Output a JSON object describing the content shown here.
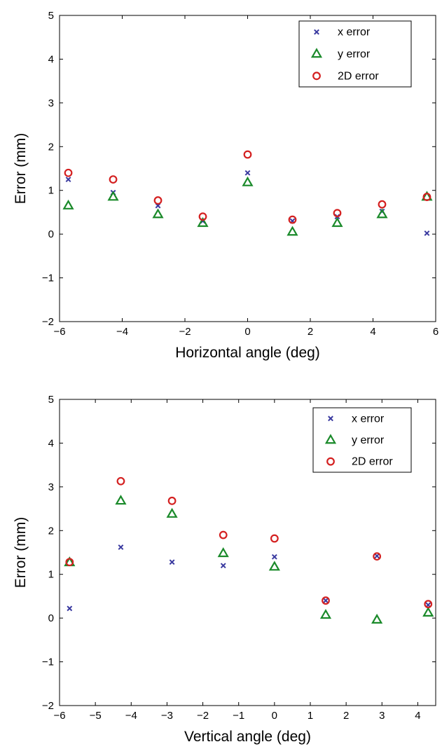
{
  "chart_data": [
    {
      "type": "scatter",
      "title": "",
      "xlabel": "Horizontal angle (deg)",
      "ylabel": "Error (mm)",
      "xlim": [
        -6,
        6
      ],
      "ylim": [
        -2,
        5
      ],
      "xticks": [
        -6,
        -4,
        -2,
        0,
        2,
        4,
        6
      ],
      "yticks": [
        -2,
        -1,
        0,
        1,
        2,
        3,
        4,
        5
      ],
      "grid": false,
      "legend_position": "top-right",
      "series": [
        {
          "name": "x error",
          "marker": "x",
          "color": "#3a3aa0",
          "x": [
            -5.72,
            -4.29,
            -2.86,
            -1.43,
            0,
            1.43,
            2.86,
            4.29,
            5.72
          ],
          "y": [
            1.25,
            0.95,
            0.65,
            0.3,
            1.4,
            0.3,
            0.4,
            0.52,
            0.02
          ]
        },
        {
          "name": "y error",
          "marker": "triangle",
          "color": "#1a8a2a",
          "x": [
            -5.72,
            -4.29,
            -2.86,
            -1.43,
            0,
            1.43,
            2.86,
            4.29,
            5.72
          ],
          "y": [
            0.65,
            0.85,
            0.45,
            0.25,
            1.18,
            0.05,
            0.25,
            0.45,
            0.85
          ]
        },
        {
          "name": "2D error",
          "marker": "circle",
          "color": "#d42020",
          "x": [
            -5.72,
            -4.29,
            -2.86,
            -1.43,
            0,
            1.43,
            2.86,
            4.29,
            5.72
          ],
          "y": [
            1.4,
            1.25,
            0.77,
            0.4,
            1.82,
            0.33,
            0.48,
            0.68,
            0.85
          ]
        }
      ]
    },
    {
      "type": "scatter",
      "title": "",
      "xlabel": "Vertical angle (deg)",
      "ylabel": "Error (mm)",
      "xlim": [
        -6,
        4.5
      ],
      "ylim": [
        -2,
        5
      ],
      "xticks": [
        -6,
        -5,
        -4,
        -3,
        -2,
        -1,
        0,
        1,
        2,
        3,
        4
      ],
      "yticks": [
        -2,
        -1,
        0,
        1,
        2,
        3,
        4,
        5
      ],
      "grid": false,
      "legend_position": "top-right",
      "series": [
        {
          "name": "x error",
          "marker": "x",
          "color": "#3a3aa0",
          "x": [
            -5.72,
            -4.29,
            -2.86,
            -1.43,
            0,
            1.43,
            2.86,
            4.29
          ],
          "y": [
            0.22,
            1.62,
            1.28,
            1.2,
            1.4,
            0.4,
            1.42,
            0.3
          ]
        },
        {
          "name": "y error",
          "marker": "triangle",
          "color": "#1a8a2a",
          "x": [
            -5.72,
            -4.29,
            -2.86,
            -1.43,
            0,
            1.43,
            2.86,
            4.29
          ],
          "y": [
            1.27,
            2.68,
            2.38,
            1.48,
            1.17,
            0.07,
            -0.04,
            0.12
          ]
        },
        {
          "name": "2D error",
          "marker": "circle",
          "color": "#d42020",
          "x": [
            -5.72,
            -4.29,
            -2.86,
            -1.43,
            0,
            1.43,
            2.86,
            4.29
          ],
          "y": [
            1.28,
            3.13,
            2.68,
            1.9,
            1.82,
            0.4,
            1.41,
            0.32
          ]
        }
      ]
    }
  ]
}
